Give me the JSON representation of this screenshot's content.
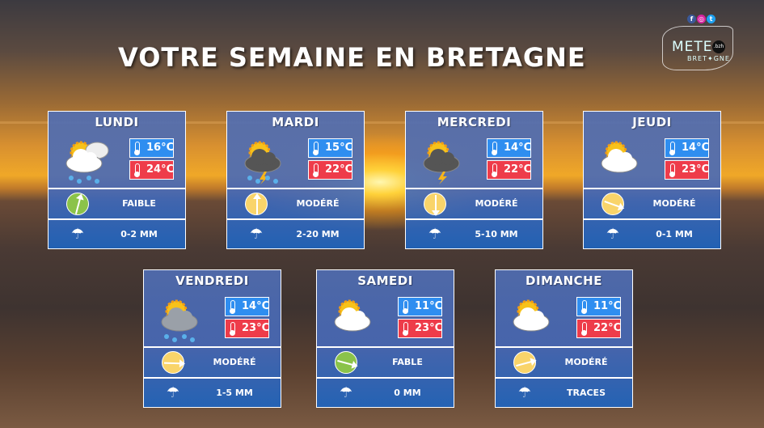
{
  "title": "VOTRE SEMAINE EN BRETAGNE",
  "logo": {
    "text": "METEO BRETAGNE",
    "badge": ".bzh",
    "social": [
      "facebook-icon",
      "instagram-icon",
      "twitter-icon"
    ]
  },
  "colors": {
    "min_temp": "#2f8ef0",
    "max_temp": "#ee3c4a",
    "wind_faible": "#8bc34a",
    "wind_modere": "#f9d46a"
  },
  "days": [
    {
      "name": "LUNDI",
      "weather": "sun-cloud-rain",
      "min": "16°C",
      "max": "24°C",
      "wind": "FAIBLE",
      "wind_dir_deg": 15,
      "wind_color": "#8bc34a",
      "rain": "0-2 MM"
    },
    {
      "name": "MARDI",
      "weather": "sun-storm-rain",
      "min": "15°C",
      "max": "22°C",
      "wind": "MODÉRÉ",
      "wind_dir_deg": 0,
      "wind_color": "#f9d46a",
      "rain": "2-20 MM"
    },
    {
      "name": "MERCREDI",
      "weather": "sun-storm",
      "min": "14°C",
      "max": "22°C",
      "wind": "MODÉRÉ",
      "wind_dir_deg": 180,
      "wind_color": "#f9d46a",
      "rain": "5-10 MM"
    },
    {
      "name": "JEUDI",
      "weather": "sun-cloud",
      "min": "14°C",
      "max": "23°C",
      "wind": "MODÉRÉ",
      "wind_dir_deg": 110,
      "wind_color": "#f9d46a",
      "rain": "0-1 MM"
    },
    {
      "name": "VENDREDI",
      "weather": "sun-grey-cloud-rain",
      "min": "14°C",
      "max": "23°C",
      "wind": "MODÉRÉ",
      "wind_dir_deg": 92,
      "wind_color": "#f9d46a",
      "rain": "1-5  MM"
    },
    {
      "name": "SAMEDI",
      "weather": "sun-cloud",
      "min": "11°C",
      "max": "23°C",
      "wind": "FABLE",
      "wind_dir_deg": 105,
      "wind_color": "#8bc34a",
      "rain": "0 MM"
    },
    {
      "name": "DIMANCHE",
      "weather": "sun-cloud",
      "min": "11°C",
      "max": "22°C",
      "wind": "MODÉRÉ",
      "wind_dir_deg": 75,
      "wind_color": "#f9d46a",
      "rain": "TRACES"
    }
  ]
}
